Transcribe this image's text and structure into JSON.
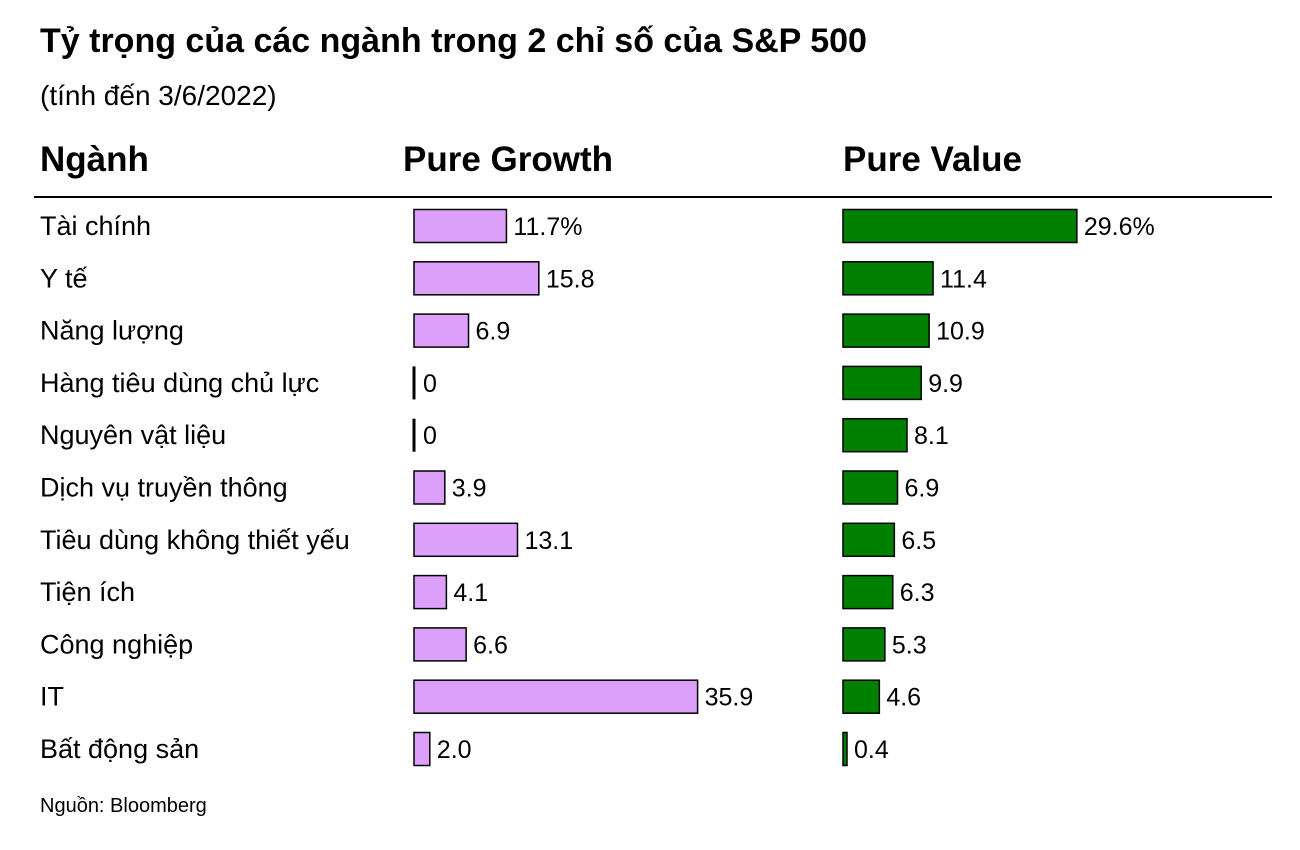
{
  "header": {
    "title": "Tỷ trọng của các ngành trong 2 chỉ số của S&P 500",
    "subtitle": "(tính đến 3/6/2022)",
    "col_category": "Ngành",
    "col_growth": "Pure Growth",
    "col_value": "Pure Value"
  },
  "footer": {
    "source": "Nguồn: Bloomberg"
  },
  "chart_data": {
    "type": "bar",
    "orientation": "horizontal",
    "categories": [
      "Tài chính",
      "Y tế",
      "Năng lượng",
      "Hàng tiêu dùng chủ lực",
      "Nguyên vật liệu",
      "Dịch vụ truyền thông",
      "Tiêu dùng không thiết yếu",
      "Tiện ích",
      "Công nghiệp",
      "IT",
      "Bất động sản"
    ],
    "series": [
      {
        "name": "Pure Growth",
        "values": [
          11.7,
          15.8,
          6.9,
          0,
          0,
          3.9,
          13.1,
          4.1,
          6.6,
          35.9,
          2.0
        ],
        "labels": [
          "11.7%",
          "15.8",
          "6.9",
          "0",
          "0",
          "3.9",
          "13.1",
          "4.1",
          "6.6",
          "35.9",
          "2.0"
        ],
        "color": "#dda0fa"
      },
      {
        "name": "Pure Value",
        "values": [
          29.6,
          11.4,
          10.9,
          9.9,
          8.1,
          6.9,
          6.5,
          6.3,
          5.3,
          4.6,
          0.4
        ],
        "labels": [
          "29.6%",
          "11.4",
          "10.9",
          "9.9",
          "8.1",
          "6.9",
          "6.5",
          "6.3",
          "5.3",
          "4.6",
          "0.4"
        ],
        "color": "#008000"
      }
    ],
    "unit": "%"
  }
}
